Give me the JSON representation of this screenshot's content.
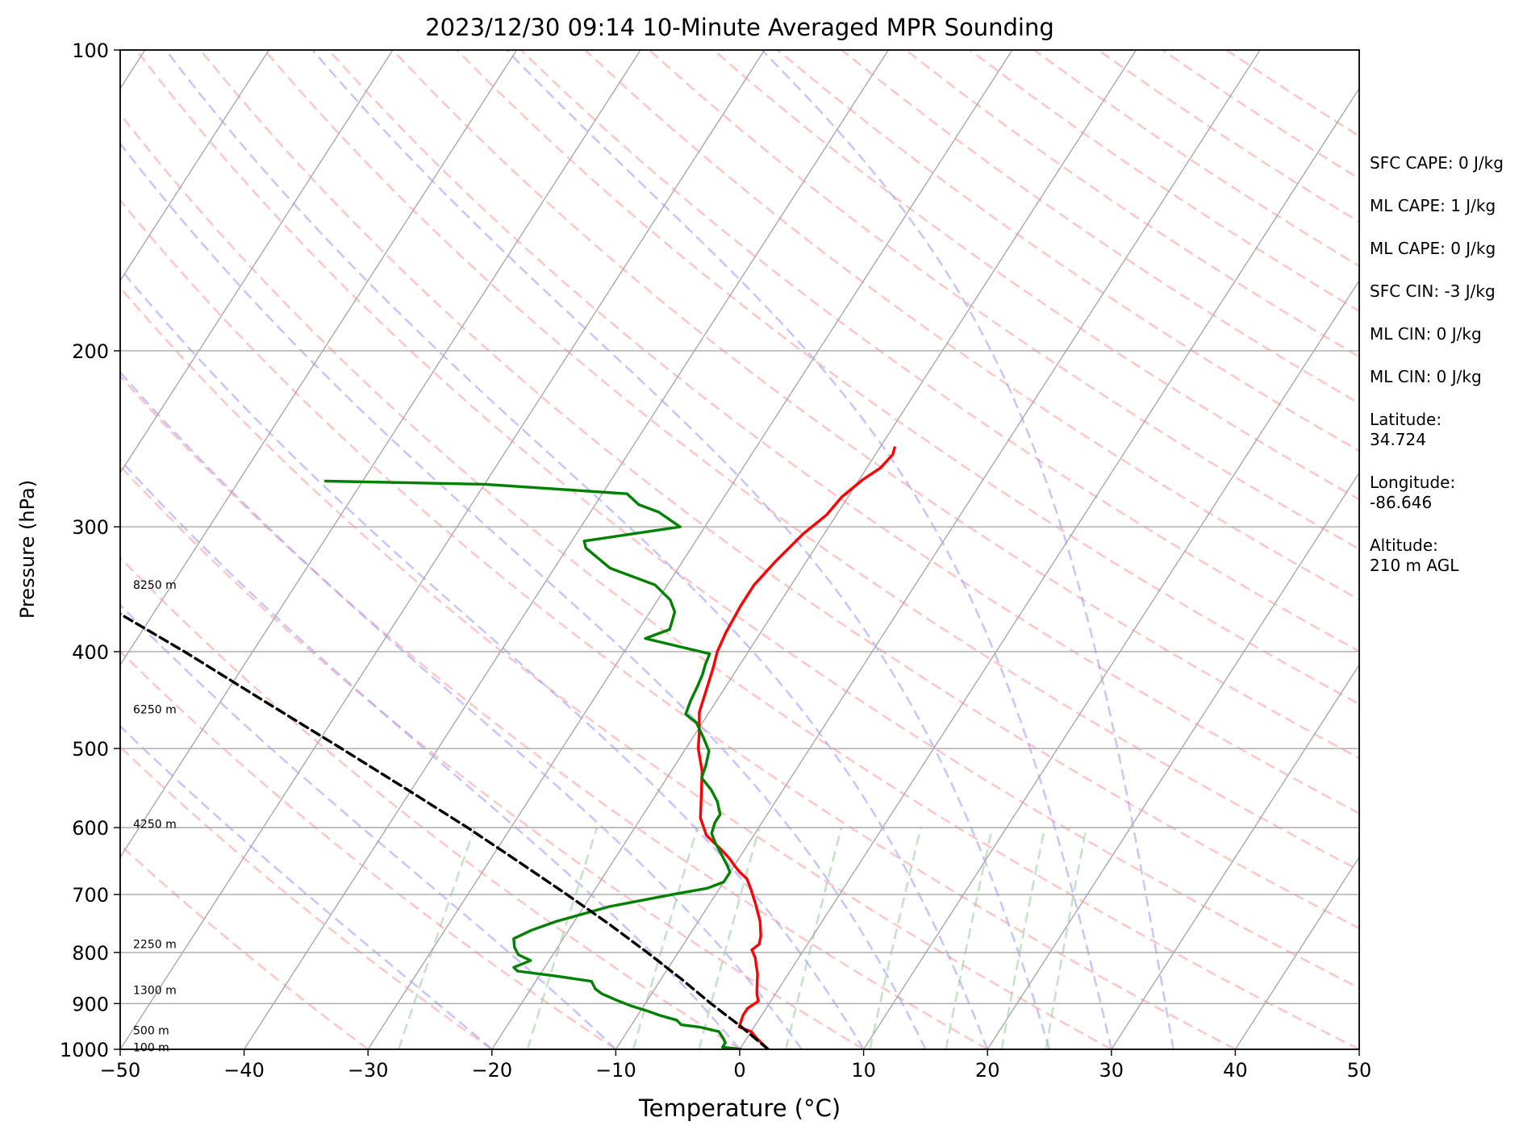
{
  "chart_data": {
    "type": "line",
    "title": "2023/12/30 09:14 10-Minute Averaged MPR Sounding",
    "xlabel": "Temperature (°C)",
    "ylabel": "Pressure (hPa)",
    "xlim": [
      -50,
      50
    ],
    "ylim": [
      1000,
      100
    ],
    "y_scale": "log",
    "x_ticks": [
      "−50",
      "−40",
      "−30",
      "−20",
      "−10",
      "0",
      "10",
      "20",
      "30",
      "40",
      "50"
    ],
    "y_ticks": [
      "100",
      "200",
      "300",
      "400",
      "500",
      "600",
      "700",
      "800",
      "900",
      "1000"
    ],
    "grid": true,
    "skew": "skew-T",
    "colors": {
      "temperature": "#ff0000",
      "dewpoint": "#008000",
      "parcel": "#000000",
      "isotherm": "#a9a9a9",
      "dry_adiabat": "#ff9999",
      "moist_adiabat": "#9999ff",
      "mixing_ratio": "#99cc99"
    },
    "height_labels": [
      {
        "text": "8250 m",
        "p": 343
      },
      {
        "text": "6250 m",
        "p": 457
      },
      {
        "text": "4250 m",
        "p": 595
      },
      {
        "text": "2250 m",
        "p": 785
      },
      {
        "text": "1300 m",
        "p": 872
      },
      {
        "text": "500 m",
        "p": 957
      },
      {
        "text": "100 m",
        "p": 995
      }
    ],
    "series": [
      {
        "key": "temperature",
        "points": [
          [
            2.3,
            1000
          ],
          [
            0.8,
            975
          ],
          [
            0.0,
            960
          ],
          [
            -1.2,
            950
          ],
          [
            -1.5,
            925
          ],
          [
            -1.5,
            910
          ],
          [
            -1.0,
            895
          ],
          [
            -1.5,
            880
          ],
          [
            -2.0,
            860
          ],
          [
            -2.5,
            840
          ],
          [
            -3.0,
            825
          ],
          [
            -3.5,
            810
          ],
          [
            -4.2,
            795
          ],
          [
            -3.9,
            785
          ],
          [
            -4.2,
            770
          ],
          [
            -5.0,
            745
          ],
          [
            -6.3,
            715
          ],
          [
            -7.5,
            690
          ],
          [
            -8.3,
            675
          ],
          [
            -9.2,
            665
          ],
          [
            -9.9,
            656
          ],
          [
            -10.7,
            645
          ],
          [
            -11.8,
            632
          ],
          [
            -13.8,
            611
          ],
          [
            -15.2,
            587
          ],
          [
            -16.2,
            560
          ],
          [
            -17.5,
            527
          ],
          [
            -19.0,
            500
          ],
          [
            -19.7,
            483
          ],
          [
            -20.8,
            460
          ],
          [
            -21.5,
            433
          ],
          [
            -22.0,
            415
          ],
          [
            -22.5,
            400
          ],
          [
            -22.8,
            383
          ],
          [
            -23.0,
            360
          ],
          [
            -23.0,
            343
          ],
          [
            -22.5,
            325
          ],
          [
            -21.7,
            305
          ],
          [
            -20.8,
            292
          ],
          [
            -20.5,
            280
          ],
          [
            -19.7,
            269
          ],
          [
            -18.9,
            262
          ],
          [
            -18.6,
            254
          ],
          [
            -18.8,
            250
          ]
        ]
      },
      {
        "key": "dewpoint",
        "points": [
          [
            0.1,
            1000
          ],
          [
            -1.5,
            995
          ],
          [
            -1.5,
            985
          ],
          [
            -1.9,
            975
          ],
          [
            -2.6,
            960
          ],
          [
            -4.4,
            950
          ],
          [
            -6.0,
            945
          ],
          [
            -6.6,
            935
          ],
          [
            -8.2,
            925
          ],
          [
            -9.5,
            915
          ],
          [
            -11.0,
            905
          ],
          [
            -12.5,
            893
          ],
          [
            -14.0,
            880
          ],
          [
            -14.8,
            870
          ],
          [
            -15.5,
            855
          ],
          [
            -18.5,
            845
          ],
          [
            -22.0,
            835
          ],
          [
            -22.5,
            828
          ],
          [
            -21.5,
            815
          ],
          [
            -22.8,
            804
          ],
          [
            -23.5,
            790
          ],
          [
            -24.0,
            775
          ],
          [
            -23.0,
            760
          ],
          [
            -21.5,
            745
          ],
          [
            -18.0,
            720
          ],
          [
            -13.5,
            700
          ],
          [
            -11.0,
            690
          ],
          [
            -10.0,
            680
          ],
          [
            -10.0,
            665
          ],
          [
            -10.5,
            656
          ],
          [
            -11.5,
            640
          ],
          [
            -12.8,
            620
          ],
          [
            -13.5,
            608
          ],
          [
            -13.8,
            593
          ],
          [
            -13.8,
            582
          ],
          [
            -14.7,
            565
          ],
          [
            -15.8,
            550
          ],
          [
            -17.2,
            535
          ],
          [
            -17.5,
            520
          ],
          [
            -18.0,
            503
          ],
          [
            -19.2,
            487
          ],
          [
            -20.5,
            471
          ],
          [
            -21.8,
            462
          ],
          [
            -22.1,
            448
          ],
          [
            -22.3,
            433
          ],
          [
            -22.5,
            422
          ],
          [
            -22.8,
            412
          ],
          [
            -23.0,
            402
          ],
          [
            -29.0,
            388
          ],
          [
            -27.5,
            380
          ],
          [
            -28.0,
            365
          ],
          [
            -29.0,
            355
          ],
          [
            -31.0,
            343
          ],
          [
            -35.5,
            330
          ],
          [
            -38.5,
            315
          ],
          [
            -39.0,
            310
          ],
          [
            -32.0,
            300
          ],
          [
            -34.5,
            290
          ],
          [
            -36.5,
            285
          ],
          [
            -38.0,
            278
          ],
          [
            -50.0,
            272
          ],
          [
            -63.0,
            270
          ]
        ]
      },
      {
        "key": "parcel",
        "points": [
          [
            2.3,
            1000
          ],
          [
            -1.0,
            950
          ],
          [
            -4.7,
            900
          ],
          [
            -8.4,
            850
          ],
          [
            -12.5,
            800
          ],
          [
            -17.0,
            750
          ],
          [
            -22.0,
            700
          ],
          [
            -27.5,
            650
          ],
          [
            -33.5,
            600
          ],
          [
            -40.3,
            550
          ],
          [
            -47.8,
            500
          ],
          [
            -56.2,
            450
          ],
          [
            -65.5,
            400
          ],
          [
            -76.5,
            350
          ],
          [
            -89.5,
            300
          ],
          [
            -95.0,
            281
          ]
        ]
      }
    ]
  },
  "info_panel": {
    "items": [
      "SFC CAPE: 0 J/kg",
      "ML CAPE: 1 J/kg",
      "ML CAPE: 0 J/kg",
      "SFC CIN: -3 J/kg",
      "ML CIN: 0 J/kg",
      "ML CIN: 0 J/kg",
      "Latitude:\n34.724",
      "Longitude:\n-86.646",
      "Altitude:\n210 m AGL"
    ]
  }
}
